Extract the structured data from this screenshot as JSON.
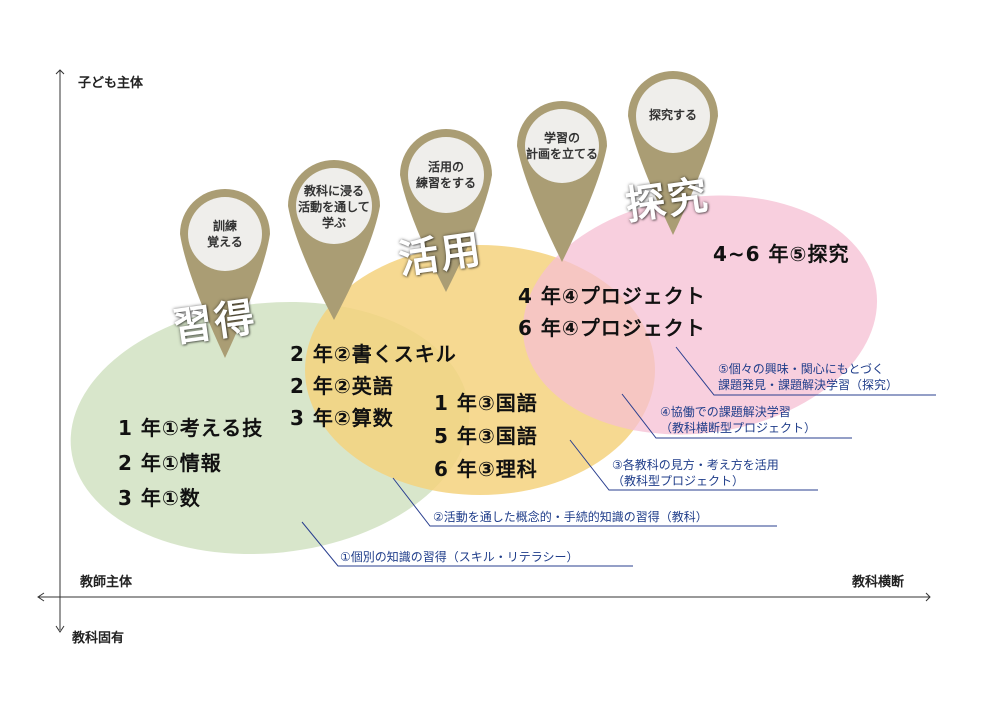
{
  "axes": {
    "y_top": "子ども主体",
    "y_bottom": "教科固有",
    "x_left": "教師主体",
    "x_right": "教科横断"
  },
  "colors": {
    "green": "#d6e5c8",
    "yellow": "#f5d27e",
    "pink": "#f6bfd3",
    "pin": "#aa9d74",
    "pin_inner": "#efeeeb",
    "note_text": "#1f3d8a"
  },
  "stages": {
    "shutoku": "習得",
    "katsuyou": "活用",
    "tankyu": "探究"
  },
  "pins": [
    {
      "text": "訓練\n覚える"
    },
    {
      "text": "教科に浸る\n活動を通して\n学ぶ"
    },
    {
      "text": "活用の\n練習をする"
    },
    {
      "text": "学習の\n計画を立てる"
    },
    {
      "text": "探究する"
    }
  ],
  "grades": {
    "green": [
      "1 年①考える技",
      "2 年①情報",
      "3 年①数"
    ],
    "yellow_left": [
      "2 年②書くスキル",
      "2 年②英語",
      "3 年②算数"
    ],
    "yellow_right": [
      "1 年③国語",
      "5 年③国語",
      "6 年③理科"
    ],
    "pink_project": [
      "4 年④プロジェクト",
      "6 年④プロジェクト"
    ],
    "pink_inquiry": "4~6 年⑤探究"
  },
  "notes": [
    "①個別の知識の習得（スキル・リテラシー）",
    "②活動を通した概念的・手続的知識の習得（教科）",
    "③各教科の見方・考え方を活用\n（教科型プロジェクト）",
    "④協働での課題解決学習\n（教科横断型プロジェクト）",
    "⑤個々の興味・関心にもとづく\n課題発見・課題解決学習（探究）"
  ]
}
